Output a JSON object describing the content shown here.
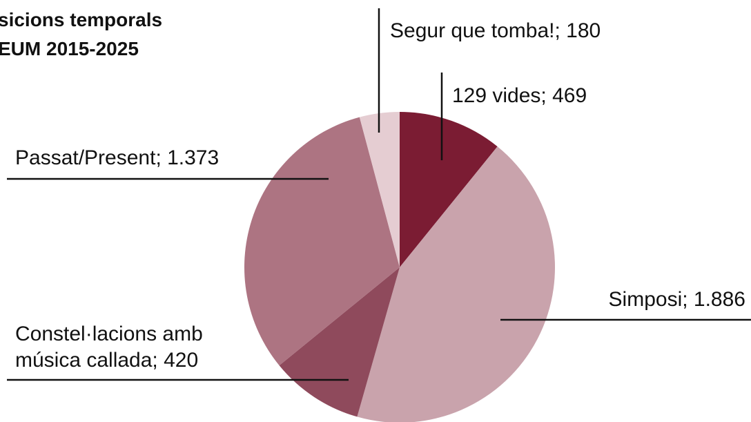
{
  "chart_data": {
    "type": "pie",
    "title": [
      "sicions temporals",
      "EUM 2015-2025"
    ],
    "labels": [
      [
        "129 vides; 469"
      ],
      [
        "Simposi; 1.886"
      ],
      [
        "Constel·lacions amb",
        "música callada; 420"
      ],
      [
        "Passat/Present; 1.373"
      ],
      [
        "Segur que tomba!; 180"
      ]
    ],
    "values": [
      469,
      1886,
      420,
      1373,
      180
    ],
    "colors": [
      "#7b1c33",
      "#c9a3ac",
      "#8f4a5c",
      "#ad7482",
      "#e5cdd2"
    ]
  }
}
